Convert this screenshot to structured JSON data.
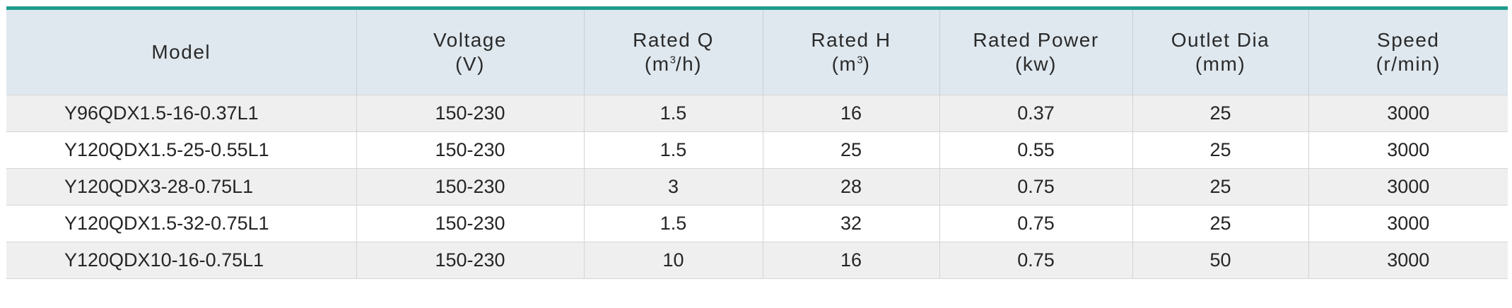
{
  "accent_color": "#1f9b8c",
  "header": {
    "model": "Model",
    "voltage": {
      "label": "Voltage",
      "unit": "(V)"
    },
    "rated_q": {
      "label": "Rated Q",
      "unit_pre": "(m",
      "unit_sup": "3",
      "unit_post": "/h)"
    },
    "rated_h": {
      "label": "Rated H",
      "unit_pre": "(m",
      "unit_sup": "3",
      "unit_post": ")"
    },
    "rated_power": {
      "label": "Rated Power",
      "unit": "(kw)"
    },
    "outlet_dia": {
      "label": "Outlet Dia",
      "unit": "(mm)"
    },
    "speed": {
      "label": "Speed",
      "unit": "(r/min)"
    }
  },
  "rows": [
    {
      "model": "Y96QDX1.5-16-0.37L1",
      "voltage": "150-230",
      "rated_q": "1.5",
      "rated_h": "16",
      "rated_power": "0.37",
      "outlet_dia": "25",
      "speed": "3000"
    },
    {
      "model": "Y120QDX1.5-25-0.55L1",
      "voltage": "150-230",
      "rated_q": "1.5",
      "rated_h": "25",
      "rated_power": "0.55",
      "outlet_dia": "25",
      "speed": "3000"
    },
    {
      "model": "Y120QDX3-28-0.75L1",
      "voltage": "150-230",
      "rated_q": "3",
      "rated_h": "28",
      "rated_power": "0.75",
      "outlet_dia": "25",
      "speed": "3000"
    },
    {
      "model": "Y120QDX1.5-32-0.75L1",
      "voltage": "150-230",
      "rated_q": "1.5",
      "rated_h": "32",
      "rated_power": "0.75",
      "outlet_dia": "25",
      "speed": "3000"
    },
    {
      "model": "Y120QDX10-16-0.75L1",
      "voltage": "150-230",
      "rated_q": "10",
      "rated_h": "16",
      "rated_power": "0.75",
      "outlet_dia": "50",
      "speed": "3000"
    }
  ]
}
